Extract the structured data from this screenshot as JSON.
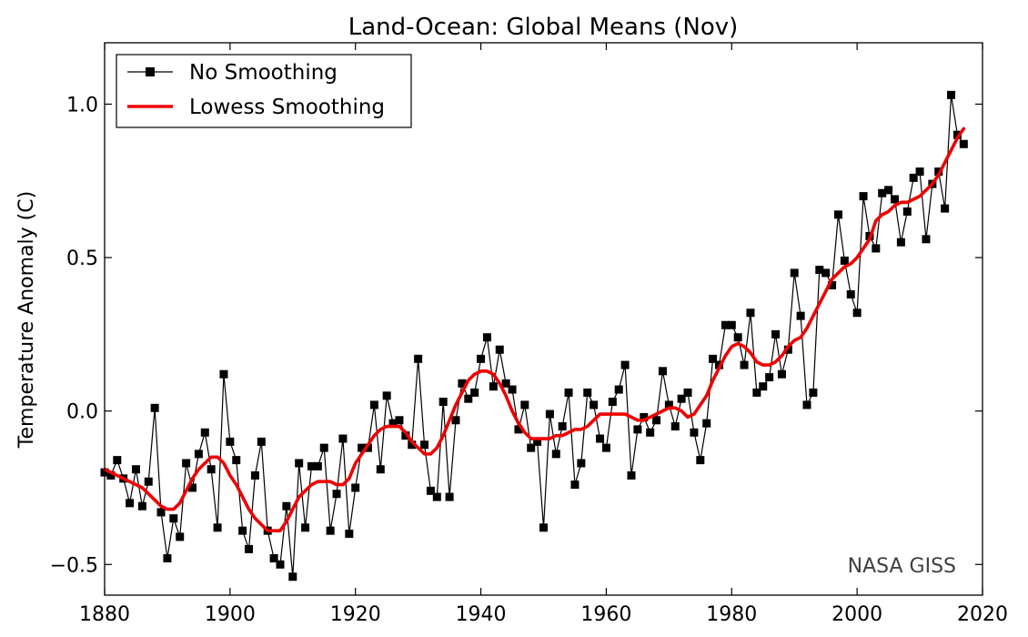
{
  "chart_data": {
    "type": "line",
    "title": "Land-Ocean: Global Means (Nov)",
    "xlabel": "",
    "ylabel": "Temperature Anomaly (C)",
    "xlim": [
      1880,
      2020
    ],
    "ylim": [
      -0.6,
      1.2
    ],
    "xticks": [
      1880,
      1900,
      1920,
      1940,
      1960,
      1980,
      2000,
      2020
    ],
    "yticks": [
      -0.5,
      0.0,
      0.5,
      1.0
    ],
    "ytick_labels": [
      "−0.5",
      "0.0",
      "0.5",
      "1.0"
    ],
    "xtick_labels": [
      "1880",
      "1900",
      "1920",
      "1940",
      "1960",
      "1980",
      "2000",
      "2020"
    ],
    "legend_position": "top-left",
    "annotation": "NASA GISS",
    "series": [
      {
        "name": "No Smoothing",
        "color": "#000000",
        "marker": "square",
        "x_start": 1880,
        "values": [
          -0.2,
          -0.21,
          -0.16,
          -0.22,
          -0.3,
          -0.19,
          -0.31,
          -0.23,
          0.01,
          -0.33,
          -0.48,
          -0.35,
          -0.41,
          -0.17,
          -0.25,
          -0.14,
          -0.07,
          -0.19,
          -0.38,
          0.12,
          -0.1,
          -0.16,
          -0.39,
          -0.45,
          -0.21,
          -0.1,
          -0.39,
          -0.48,
          -0.5,
          -0.31,
          -0.54,
          -0.17,
          -0.38,
          -0.18,
          -0.18,
          -0.12,
          -0.39,
          -0.27,
          -0.09,
          -0.4,
          -0.25,
          -0.12,
          -0.12,
          0.02,
          -0.19,
          0.05,
          -0.04,
          -0.03,
          -0.08,
          -0.11,
          0.17,
          -0.11,
          -0.26,
          -0.28,
          0.03,
          -0.28,
          -0.03,
          0.09,
          0.04,
          0.06,
          0.17,
          0.24,
          0.08,
          0.2,
          0.09,
          0.07,
          -0.06,
          0.02,
          -0.12,
          -0.1,
          -0.38,
          -0.01,
          -0.14,
          -0.05,
          0.06,
          -0.24,
          -0.17,
          0.06,
          0.02,
          -0.09,
          -0.12,
          0.03,
          0.07,
          0.15,
          -0.21,
          -0.06,
          -0.02,
          -0.07,
          -0.03,
          0.13,
          0.02,
          -0.05,
          0.04,
          0.06,
          -0.07,
          -0.16,
          -0.04,
          0.17,
          0.15,
          0.28,
          0.28,
          0.24,
          0.15,
          0.32,
          0.06,
          0.08,
          0.11,
          0.25,
          0.12,
          0.2,
          0.45,
          0.31,
          0.02,
          0.06,
          0.46,
          0.45,
          0.41,
          0.64,
          0.49,
          0.38,
          0.32,
          0.7,
          0.57,
          0.53,
          0.71,
          0.72,
          0.69,
          0.55,
          0.65,
          0.76,
          0.78,
          0.56,
          0.74,
          0.78,
          0.66,
          1.03,
          0.9,
          0.87
        ]
      },
      {
        "name": "Lowess Smoothing",
        "color": "#ee0000",
        "marker": "none",
        "x_start": 1880,
        "values": [
          -0.19,
          -0.2,
          -0.21,
          -0.22,
          -0.23,
          -0.24,
          -0.25,
          -0.27,
          -0.29,
          -0.31,
          -0.32,
          -0.32,
          -0.3,
          -0.26,
          -0.22,
          -0.19,
          -0.17,
          -0.15,
          -0.15,
          -0.17,
          -0.21,
          -0.24,
          -0.28,
          -0.32,
          -0.35,
          -0.37,
          -0.39,
          -0.39,
          -0.39,
          -0.36,
          -0.32,
          -0.28,
          -0.26,
          -0.24,
          -0.23,
          -0.23,
          -0.23,
          -0.24,
          -0.24,
          -0.22,
          -0.17,
          -0.14,
          -0.11,
          -0.08,
          -0.06,
          -0.05,
          -0.05,
          -0.05,
          -0.07,
          -0.1,
          -0.12,
          -0.14,
          -0.14,
          -0.12,
          -0.08,
          -0.03,
          0.02,
          0.06,
          0.1,
          0.12,
          0.13,
          0.13,
          0.12,
          0.09,
          0.05,
          0.0,
          -0.04,
          -0.07,
          -0.09,
          -0.09,
          -0.09,
          -0.09,
          -0.08,
          -0.08,
          -0.07,
          -0.06,
          -0.06,
          -0.05,
          -0.03,
          -0.01,
          -0.01,
          -0.01,
          -0.01,
          -0.01,
          -0.02,
          -0.03,
          -0.03,
          -0.02,
          -0.01,
          0.0,
          0.01,
          0.01,
          0.0,
          -0.02,
          -0.01,
          0.02,
          0.05,
          0.1,
          0.14,
          0.18,
          0.21,
          0.22,
          0.21,
          0.19,
          0.16,
          0.15,
          0.15,
          0.16,
          0.18,
          0.21,
          0.23,
          0.24,
          0.27,
          0.31,
          0.35,
          0.39,
          0.43,
          0.45,
          0.47,
          0.48,
          0.5,
          0.53,
          0.56,
          0.62,
          0.64,
          0.65,
          0.67,
          0.68,
          0.68,
          0.69,
          0.7,
          0.72,
          0.74,
          0.77,
          0.81,
          0.85,
          0.89,
          0.92
        ]
      }
    ]
  }
}
